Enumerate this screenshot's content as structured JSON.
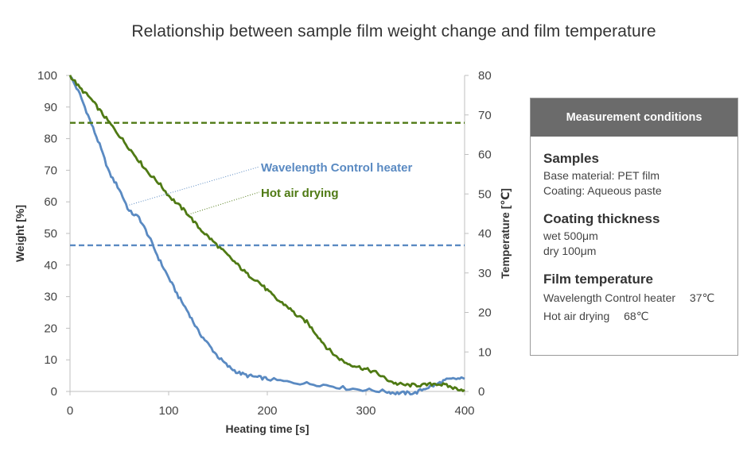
{
  "chart_data": {
    "type": "line",
    "title": "Relationship between sample film weight change and film temperature",
    "xlabel": "Heating time [s]",
    "ylabel": "Weight [%]",
    "y2label": "Temperature [℃]",
    "xlim": [
      0,
      400
    ],
    "ylim": [
      0,
      100
    ],
    "y2lim": [
      0,
      80
    ],
    "xticks": [
      0,
      100,
      200,
      300,
      400
    ],
    "yticks": [
      0,
      10,
      20,
      30,
      40,
      50,
      60,
      70,
      80,
      90,
      100
    ],
    "y2ticks": [
      0,
      10,
      20,
      30,
      40,
      50,
      60,
      70,
      80
    ],
    "grid": false,
    "legend": "inline labels",
    "series": [
      {
        "name": "Wavelength Control heater",
        "kind": "weight",
        "axis": "left",
        "color": "#5a8ac2",
        "style": "solid",
        "x": [
          0,
          10,
          20,
          30,
          40,
          50,
          60,
          70,
          80,
          90,
          100,
          110,
          120,
          130,
          140,
          150,
          160,
          170,
          180,
          190,
          200,
          220,
          240,
          260,
          280,
          300,
          320,
          330,
          340,
          350,
          360,
          370,
          380,
          390,
          400
        ],
        "y": [
          100,
          94,
          86,
          78,
          69,
          64,
          57,
          55,
          49,
          42,
          36,
          30,
          25,
          19,
          15,
          11,
          8,
          6,
          5,
          4.5,
          4,
          3,
          2.5,
          2,
          1,
          0.5,
          0,
          -0.5,
          -0.5,
          -0.5,
          1,
          2,
          3.5,
          4,
          4
        ]
      },
      {
        "name": "Hot air drying",
        "kind": "weight",
        "axis": "left",
        "color": "#4f7a14",
        "style": "solid",
        "x": [
          0,
          10,
          20,
          30,
          40,
          50,
          60,
          70,
          80,
          90,
          100,
          110,
          120,
          130,
          140,
          150,
          160,
          170,
          180,
          190,
          200,
          210,
          220,
          230,
          240,
          250,
          260,
          270,
          280,
          290,
          300,
          310,
          320,
          330,
          340,
          350,
          360,
          370,
          380,
          390,
          400
        ],
        "y": [
          100,
          96,
          93,
          89,
          85,
          81,
          77,
          73,
          69,
          66,
          62,
          59,
          56,
          52,
          49,
          46,
          43,
          40,
          37,
          35,
          32,
          29,
          27,
          24,
          22,
          18,
          14,
          11,
          9,
          8,
          7,
          6,
          4,
          2.5,
          2,
          2,
          2,
          2.5,
          2,
          1,
          0.5
        ]
      },
      {
        "name": "Wavelength Control heater",
        "kind": "temperature",
        "axis": "right",
        "color": "#5a8ac2",
        "style": "dashed",
        "x": [
          0,
          400
        ],
        "y": [
          37,
          37
        ]
      },
      {
        "name": "Hot air drying",
        "kind": "temperature",
        "axis": "right",
        "color": "#4f7a14",
        "style": "dashed",
        "x": [
          0,
          400
        ],
        "y": [
          68,
          68
        ]
      }
    ]
  },
  "labels": {
    "wavelength": "Wavelength Control heater",
    "hotair": "Hot air drying"
  },
  "conditions": {
    "header": "Measurement conditions",
    "sections": [
      {
        "title": "Samples",
        "lines": [
          "Base material: PET film",
          "Coating: Aqueous paste"
        ]
      },
      {
        "title": "Coating thickness",
        "lines": [
          "wet 500μm",
          "dry 100μm"
        ]
      },
      {
        "title": "Film temperature",
        "lines": [
          "Wavelength Control heater　 37℃",
          "Hot air drying　 68℃"
        ]
      }
    ]
  }
}
